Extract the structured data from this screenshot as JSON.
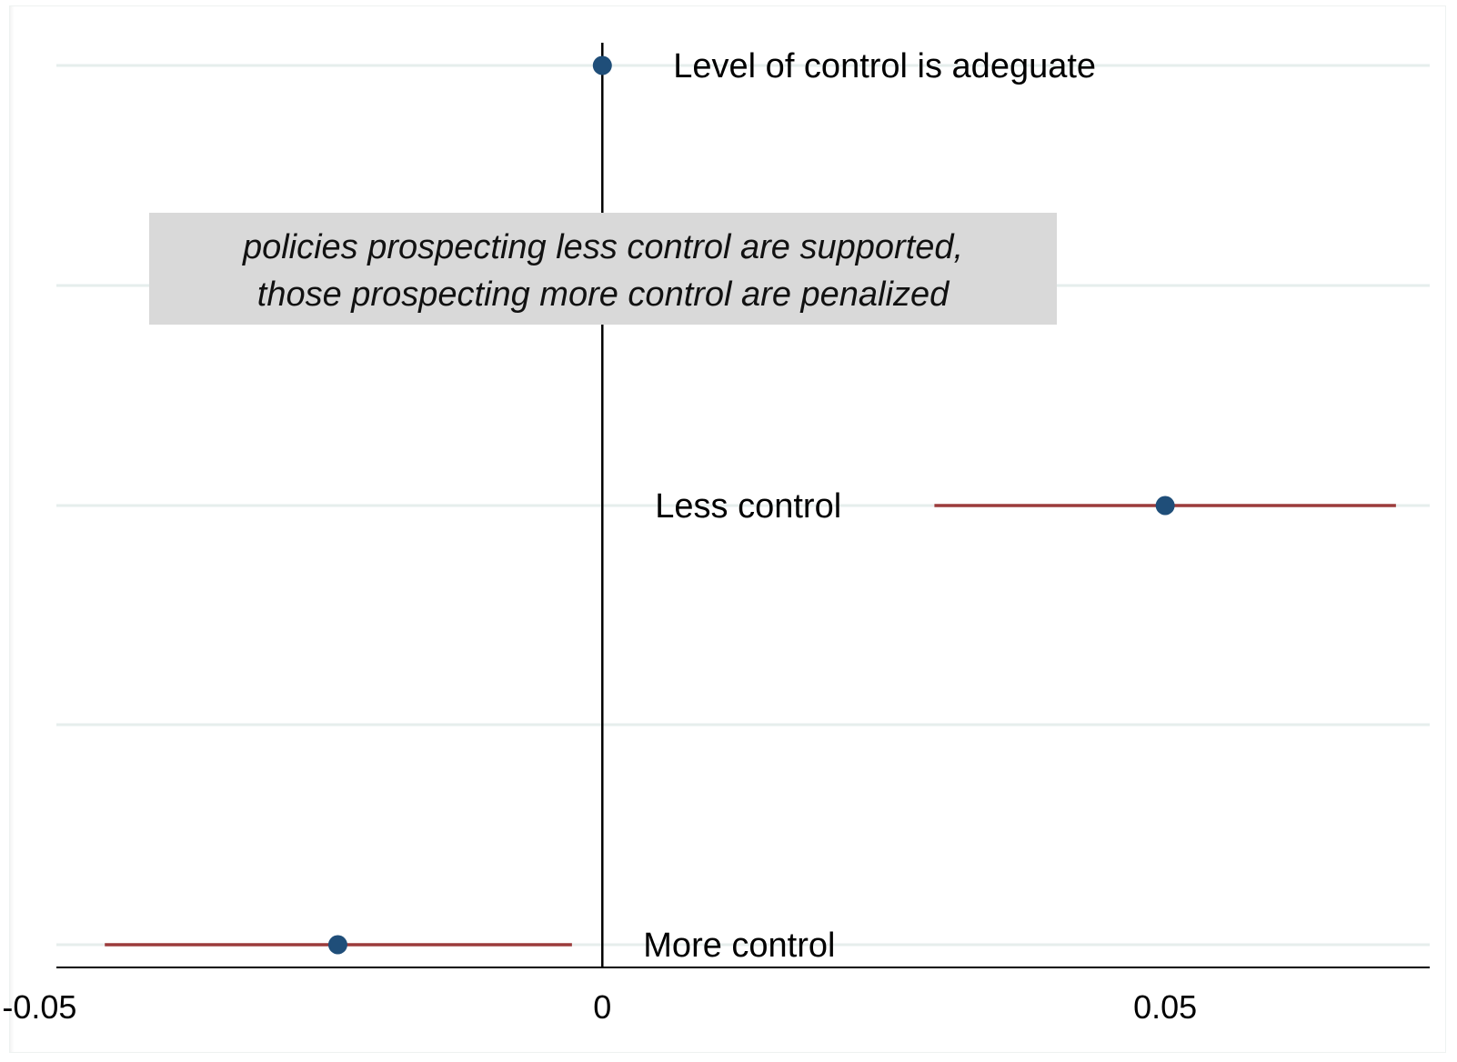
{
  "chart_data": {
    "type": "scatter",
    "subtype": "coefficient-plot",
    "title": "",
    "xlabel": "",
    "ylabel": "",
    "xlim": [
      -0.0485,
      0.0735
    ],
    "x_ticks": [
      {
        "value": -0.05,
        "label": "-0.05"
      },
      {
        "value": 0,
        "label": "0"
      },
      {
        "value": 0.05,
        "label": "0.05"
      }
    ],
    "reference_line_x": 0,
    "grid": true,
    "legend": "none",
    "points": [
      {
        "label": "Level of control is adeguate",
        "estimate": 0,
        "ci_low": null,
        "ci_high": null,
        "row": 0
      },
      {
        "label": "Less control",
        "estimate": 0.05,
        "ci_low": 0.0295,
        "ci_high": 0.0705,
        "row": 2
      },
      {
        "label": "More control",
        "estimate": -0.0235,
        "ci_low": -0.0442,
        "ci_high": -0.0027,
        "row": 4
      }
    ],
    "annotation": {
      "lines": [
        "policies prospecting less control are supported,",
        "those prospecting more control are penalized"
      ]
    },
    "colors": {
      "point": "#1f4e79",
      "ci": "#9b3b3b",
      "grid": "#e6eeec",
      "axis": "#000000",
      "annotation_bg": "#d9d9d9"
    }
  }
}
